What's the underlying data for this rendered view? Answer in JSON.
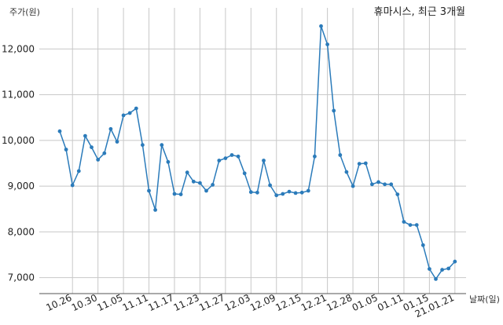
{
  "chart_data": {
    "type": "line",
    "title": "휴마시스, 최근 3개월",
    "xlabel": "날짜(일)",
    "ylabel": "주가(원)",
    "ylim": [
      6650,
      12900
    ],
    "yticks": [
      {
        "value": 7000,
        "label": "7,000"
      },
      {
        "value": 8000,
        "label": "8,000"
      },
      {
        "value": 9000,
        "label": "9,000"
      },
      {
        "value": 10000,
        "label": "10,000"
      },
      {
        "value": 11000,
        "label": "11,000"
      },
      {
        "value": 12000,
        "label": "12,000"
      }
    ],
    "xticks": [
      {
        "index": 2,
        "label": "10.26"
      },
      {
        "index": 6,
        "label": "10.30"
      },
      {
        "index": 10,
        "label": "11.05"
      },
      {
        "index": 14,
        "label": "11.11"
      },
      {
        "index": 18,
        "label": "11.17"
      },
      {
        "index": 22,
        "label": "11.23"
      },
      {
        "index": 26,
        "label": "11.27"
      },
      {
        "index": 30,
        "label": "12.03"
      },
      {
        "index": 34,
        "label": "12.09"
      },
      {
        "index": 38,
        "label": "12.15"
      },
      {
        "index": 42,
        "label": "12.21"
      },
      {
        "index": 46,
        "label": "12.28"
      },
      {
        "index": 50,
        "label": "01.05"
      },
      {
        "index": 54,
        "label": "01.11"
      },
      {
        "index": 58,
        "label": "01.15"
      },
      {
        "index": 62,
        "label": "21.01.21"
      }
    ],
    "series": [
      {
        "color": "#2b7bba",
        "values": [
          10200,
          9800,
          9020,
          9330,
          10100,
          9850,
          9580,
          9720,
          10250,
          9970,
          10550,
          10600,
          10700,
          9900,
          8900,
          8480,
          9900,
          9530,
          8830,
          8820,
          9300,
          9100,
          9070,
          8900,
          9030,
          9560,
          9610,
          9680,
          9650,
          9280,
          8870,
          8860,
          9560,
          9020,
          8800,
          8830,
          8880,
          8850,
          8860,
          8900,
          9650,
          12500,
          12100,
          10650,
          9680,
          9310,
          9000,
          9490,
          9500,
          9040,
          9090,
          9040,
          9040,
          8820,
          8220,
          8150,
          8150,
          7710,
          7190,
          6970,
          7170,
          7200,
          7350
        ]
      }
    ]
  }
}
